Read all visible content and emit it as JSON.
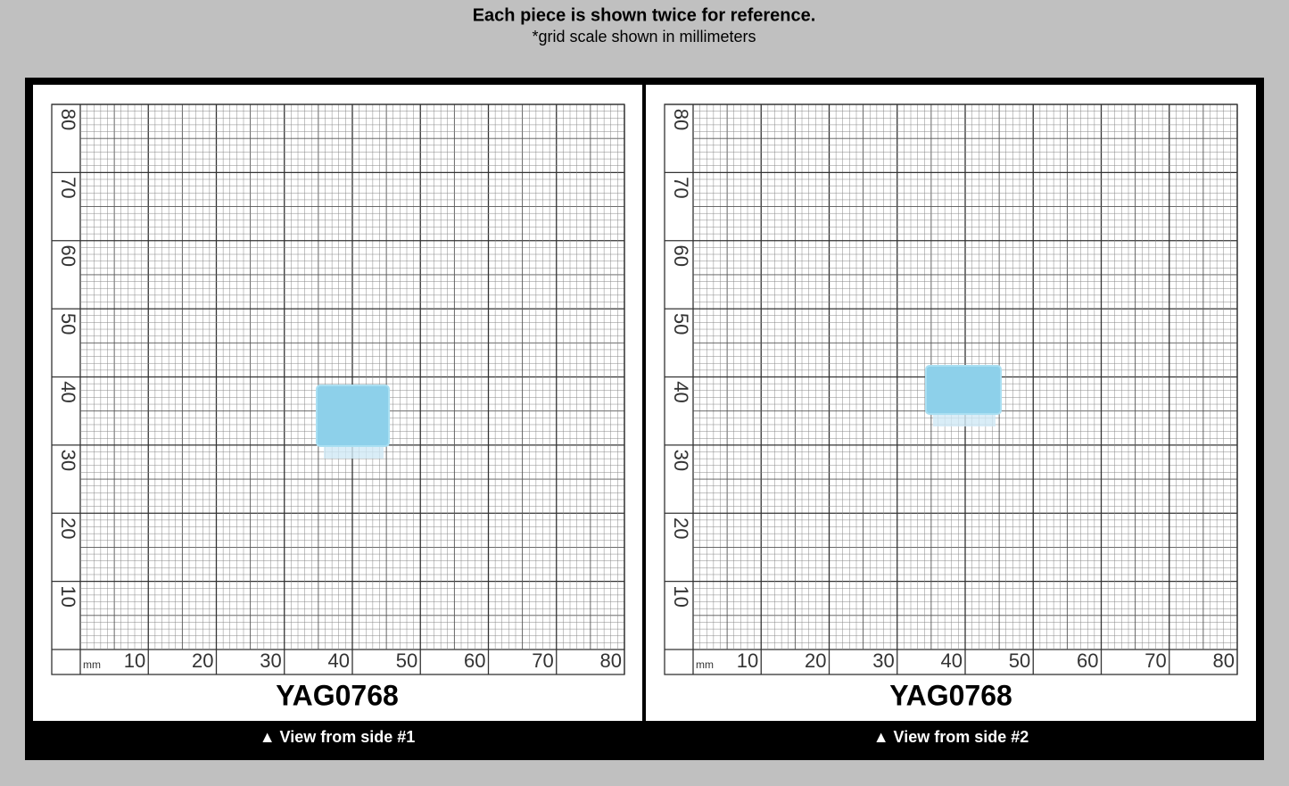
{
  "header": {
    "title": "Each piece is shown twice for reference.",
    "subtitle": "*grid scale shown in millimeters"
  },
  "panels": [
    {
      "unit": "mm",
      "x_labels": [
        10,
        20,
        30,
        40,
        50,
        60,
        70,
        80
      ],
      "y_labels": [
        10,
        20,
        30,
        40,
        50,
        60,
        70,
        80
      ],
      "code": "YAG0768",
      "caption": "▲ View from side #1"
    },
    {
      "unit": "mm",
      "x_labels": [
        10,
        20,
        30,
        40,
        50,
        60,
        70,
        80
      ],
      "y_labels": [
        10,
        20,
        30,
        40,
        50,
        60,
        70,
        80
      ],
      "code": "YAG0768",
      "caption": "▲ View from side #2"
    }
  ]
}
